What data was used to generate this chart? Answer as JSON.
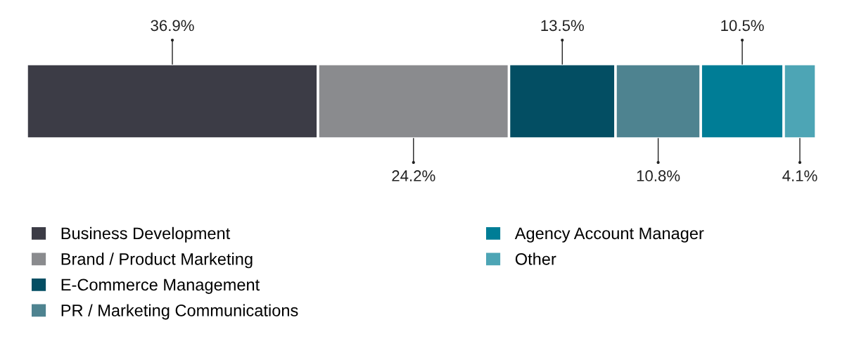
{
  "chart_data": {
    "type": "bar",
    "orientation": "horizontal",
    "stacked": true,
    "categories": [
      null
    ],
    "xlim": [
      0,
      100
    ],
    "tick_labels": false,
    "legend": "bottom left",
    "series": [
      {
        "name": "Business Development",
        "color": "#3c3c46",
        "values": [
          36.9
        ],
        "value_labels": [
          "36.9%"
        ]
      },
      {
        "name": "Brand / Product Marketing",
        "color": "#8a8b8e",
        "values": [
          24.2
        ],
        "value_labels": [
          "24.2%"
        ]
      },
      {
        "name": "E-Commerce Management",
        "color": "#034e63",
        "values": [
          13.5
        ],
        "value_labels": [
          "13.5%"
        ]
      },
      {
        "name": "PR / Marketing Communications",
        "color": "#4e8390",
        "values": [
          10.8
        ],
        "value_labels": [
          "10.8%"
        ]
      },
      {
        "name": "Agency Account Manager",
        "color": "#007d96",
        "values": [
          10.5
        ],
        "value_labels": [
          "10.5%"
        ]
      },
      {
        "name": "Other",
        "color": "#4da5b5",
        "values": [
          4.1
        ],
        "value_labels": [
          "4.1%"
        ]
      }
    ]
  }
}
